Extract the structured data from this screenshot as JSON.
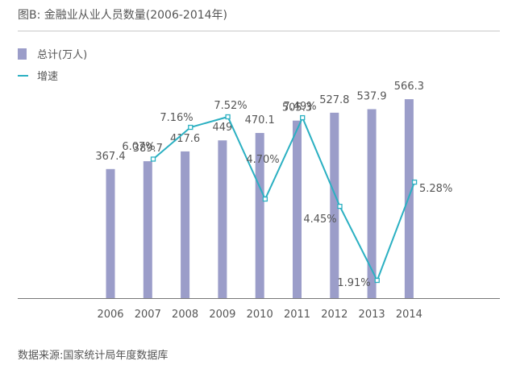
{
  "title": "图B: 金融业从业人员数量(2006-2014年)",
  "source": "数据来源:国家统计局年度数据库",
  "colors": {
    "bar": "#9b9dc9",
    "line": "#2bb0c2",
    "axis": "#777777",
    "text": "#555555"
  },
  "chart_data": {
    "type": "bar",
    "categories": [
      "2006",
      "2007",
      "2008",
      "2009",
      "2010",
      "2011",
      "2012",
      "2013",
      "2014"
    ],
    "series": [
      {
        "name": "总计(万人)",
        "type": "bar",
        "values": [
          367.4,
          389.7,
          417.6,
          449,
          470.1,
          505.3,
          527.8,
          537.9,
          566.3
        ]
      },
      {
        "name": "增速",
        "type": "line",
        "unit": "%",
        "values": [
          null,
          6.07,
          7.16,
          7.52,
          4.7,
          7.49,
          4.45,
          1.91,
          5.28
        ],
        "labels": [
          "",
          "6.07%",
          "7.16%",
          "7.52%",
          "4.70%",
          "7.49%",
          "4.45%",
          "1.91%",
          "5.28%"
        ]
      }
    ],
    "bar_labels": [
      "367.4",
      "389.7",
      "417.6",
      "449",
      "470.1",
      "505.3",
      "527.8",
      "537.9",
      "566.3"
    ],
    "legend_position": "top-left",
    "grid": false
  }
}
